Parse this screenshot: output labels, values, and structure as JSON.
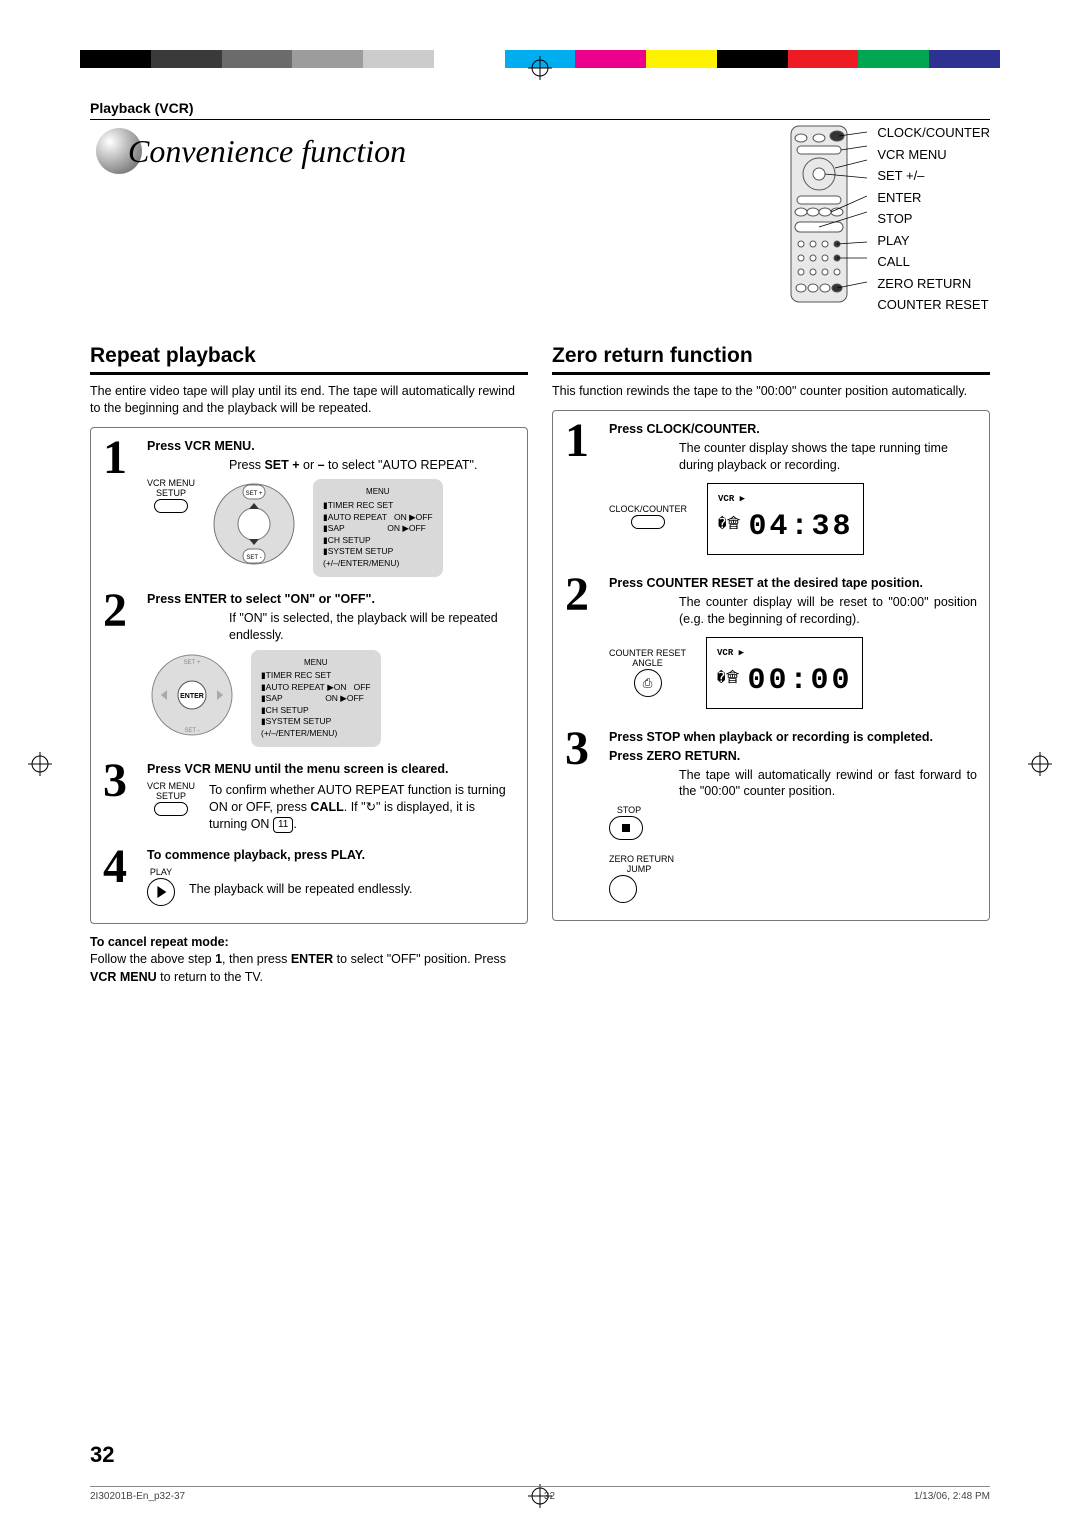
{
  "colors": {
    "bar": [
      "#000000",
      "#3a3a3a",
      "#6b6b6b",
      "#9c9c9c",
      "#cccccc",
      "#ffffff",
      "#00aeef",
      "#ec008c",
      "#fff200",
      "#000000",
      "#ed1c24",
      "#00a651",
      "#2e3192"
    ],
    "text": "#000000",
    "panel_bg": "#d9d9d9",
    "orb_grad": [
      "#ffffff",
      "#cccccc",
      "#888888",
      "#555555"
    ]
  },
  "breadcrumb": "Playback (VCR)",
  "title": "Convenience function",
  "remote_labels": [
    "CLOCK/COUNTER",
    "VCR MENU",
    "SET +/–",
    "ENTER",
    "STOP",
    "PLAY",
    "CALL",
    "ZERO RETURN",
    "COUNTER RESET"
  ],
  "left": {
    "heading": "Repeat playback",
    "intro": "The entire video tape will play until its end. The tape will automatically rewind to the beginning and the playback will be repeated.",
    "steps": [
      {
        "n": "1",
        "head": "Press VCR MENU.",
        "body": "Press SET + or – to select \"AUTO REPEAT\".",
        "btn_label": "VCR MENU\nSETUP",
        "menu": {
          "title": "MENU",
          "lines": [
            "▮TIMER REC SET",
            "▮AUTO REPEAT   ON ▶OFF",
            "▮SAP                  ON ▶OFF",
            "▮CH SETUP",
            "▮SYSTEM SETUP",
            "",
            "(+/–/ENTER/MENU)"
          ]
        }
      },
      {
        "n": "2",
        "head": "Press ENTER to select \"ON\" or \"OFF\".",
        "body": "If \"ON\" is selected, the playback will be repeated endlessly.",
        "menu": {
          "title": "MENU",
          "lines": [
            "▮TIMER REC SET",
            "▮AUTO REPEAT ▶ON   OFF",
            "▮SAP                  ON ▶OFF",
            "▮CH SETUP",
            "▮SYSTEM SETUP",
            "",
            "(+/–/ENTER/MENU)"
          ]
        }
      },
      {
        "n": "3",
        "head": "Press VCR MENU until the menu screen is cleared.",
        "body_pre": "To confirm whether AUTO REPEAT function is turning ON or OFF, press ",
        "body_bold": "CALL",
        "body_post1": ". If \"",
        "body_icon": "↻",
        "body_post2": "\" is displayed, it is turning ON ",
        "body_badge": "11",
        "body_post3": ".",
        "btn_label": "VCR MENU\nSETUP"
      },
      {
        "n": "4",
        "head": "To commence playback, press PLAY.",
        "body": "The playback will be repeated endlessly.",
        "btn_label": "PLAY"
      }
    ],
    "cancel": {
      "head": "To cancel repeat mode:",
      "body_parts": [
        "Follow the above step ",
        "1",
        ", then press ",
        "ENTER",
        " to select \"OFF\" position. Press ",
        "VCR MENU",
        " to return to the TV."
      ]
    }
  },
  "right": {
    "heading": "Zero return function",
    "intro": "This function rewinds the tape to the \"00:00\" counter position automatically.",
    "steps": [
      {
        "n": "1",
        "head": "Press CLOCK/COUNTER.",
        "body": "The counter display shows the tape running time during playback or recording.",
        "btn_label": "CLOCK/COUNTER",
        "lcd": {
          "tag": "VCR ▶",
          "digits": "04:38"
        }
      },
      {
        "n": "2",
        "head": "Press COUNTER RESET at the desired tape position.",
        "body": "The counter display will be reset to \"00:00\" position (e.g. the beginning of recording).",
        "btn_label": "COUNTER RESET\nANGLE",
        "btn_icon": "⎙",
        "lcd": {
          "tag": "VCR ▶",
          "digits": "00:00"
        }
      },
      {
        "n": "3",
        "head": "Press STOP when playback or recording is completed.",
        "head2": "Press ZERO RETURN.",
        "body": "The tape will automatically rewind or fast forward to the \"00:00\" counter position.",
        "btn1_label": "STOP",
        "btn2_label": "ZERO RETURN\nJUMP"
      }
    ]
  },
  "page_number": "32",
  "footer": {
    "file": "2I30201B-En_p32-37",
    "page": "32",
    "date": "1/13/06, 2:48 PM"
  }
}
